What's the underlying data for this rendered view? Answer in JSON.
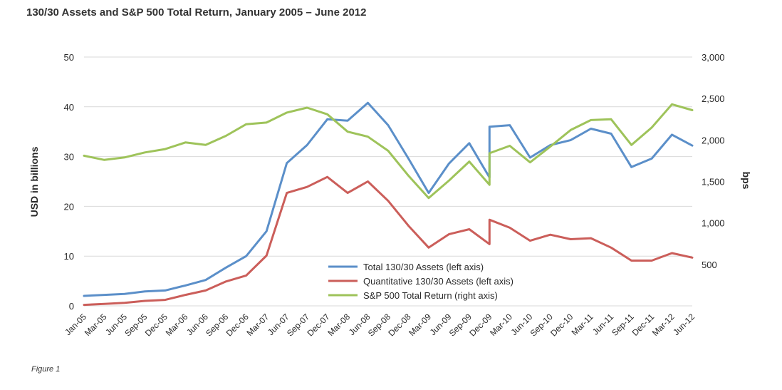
{
  "title": "130/30 Assets and S&P 500 Total Return, January 2005 – June 2012",
  "caption": "Figure 1",
  "colors": {
    "total": "#5b8fc9",
    "quant": "#cb5e5a",
    "sp500": "#9ec35a",
    "grid": "#d9d9d9"
  },
  "chart_data": {
    "type": "line",
    "title": "130/30 Assets and S&P 500 Total Return, January 2005 – June 2012",
    "ylabel": "USD in billions",
    "y2label": "bps",
    "ylim": [
      0,
      50
    ],
    "y2lim": [
      0,
      3000
    ],
    "yticks": [
      "0",
      "10",
      "20",
      "30",
      "40",
      "50"
    ],
    "y2ticks": [
      "500",
      "1,000",
      "1,500",
      "2,000",
      "2,500",
      "3,000"
    ],
    "grid": "horizontal",
    "legend_position": "bottom-center",
    "xticks": [
      "Jan-05",
      "Mar-05",
      "Jun-05",
      "Sep-05",
      "Dec-05",
      "Mar-06",
      "Jun-06",
      "Sep-06",
      "Dec-06",
      "Mar-07",
      "Jun-07",
      "Sep-07",
      "Dec-07",
      "Mar-08",
      "Jun-08",
      "Sep-08",
      "Dec-08",
      "Mar-09",
      "Jun-09",
      "Sep-09",
      "Dec-09",
      "Mar-10",
      "Jun-10",
      "Sep-10",
      "Dec-10",
      "Mar-11",
      "Jun-11",
      "Sep-11",
      "Dec-11",
      "Mar-12",
      "Jun-12"
    ],
    "series": [
      {
        "name": "Total 130/30 Assets (left axis)",
        "axis": "left",
        "points": [
          [
            "Jan-05",
            2.0
          ],
          [
            "Mar-05",
            2.2
          ],
          [
            "Jun-05",
            2.4
          ],
          [
            "Sep-05",
            2.9
          ],
          [
            "Dec-05",
            3.1
          ],
          [
            "Mar-06",
            4.1
          ],
          [
            "Jun-06",
            5.2
          ],
          [
            "Sep-06",
            7.7
          ],
          [
            "Dec-06",
            10.0
          ],
          [
            "Mar-07",
            15.0
          ],
          [
            "Jun-07",
            28.7
          ],
          [
            "Sep-07",
            32.3
          ],
          [
            "Dec-07",
            37.5
          ],
          [
            "Mar-08",
            37.2
          ],
          [
            "Jun-08",
            40.8
          ],
          [
            "Sep-08",
            36.3
          ],
          [
            "Dec-08",
            29.6
          ],
          [
            "Mar-09",
            22.7
          ],
          [
            "Jun-09",
            28.6
          ],
          [
            "Sep-09",
            32.7
          ],
          [
            "Dec-09",
            25.8
          ],
          [
            "Dec-09",
            36.0
          ],
          [
            "Mar-10",
            36.3
          ],
          [
            "Jun-10",
            29.8
          ],
          [
            "Sep-10",
            32.3
          ],
          [
            "Dec-10",
            33.3
          ],
          [
            "Mar-11",
            35.6
          ],
          [
            "Jun-11",
            34.6
          ],
          [
            "Sep-11",
            27.9
          ],
          [
            "Dec-11",
            29.6
          ],
          [
            "Mar-12",
            34.4
          ],
          [
            "Jun-12",
            32.2
          ]
        ]
      },
      {
        "name": "Quantitative 130/30 Assets (left axis)",
        "axis": "left",
        "points": [
          [
            "Jan-05",
            0.2
          ],
          [
            "Mar-05",
            0.4
          ],
          [
            "Jun-05",
            0.6
          ],
          [
            "Sep-05",
            1.0
          ],
          [
            "Dec-05",
            1.2
          ],
          [
            "Mar-06",
            2.2
          ],
          [
            "Jun-06",
            3.1
          ],
          [
            "Sep-06",
            4.9
          ],
          [
            "Dec-06",
            6.1
          ],
          [
            "Mar-07",
            10.1
          ],
          [
            "Jun-07",
            22.7
          ],
          [
            "Sep-07",
            23.9
          ],
          [
            "Dec-07",
            25.9
          ],
          [
            "Mar-08",
            22.7
          ],
          [
            "Jun-08",
            25.0
          ],
          [
            "Sep-08",
            21.1
          ],
          [
            "Dec-08",
            16.1
          ],
          [
            "Mar-09",
            11.7
          ],
          [
            "Jun-09",
            14.4
          ],
          [
            "Sep-09",
            15.4
          ],
          [
            "Dec-09",
            12.4
          ],
          [
            "Dec-09",
            17.3
          ],
          [
            "Mar-10",
            15.7
          ],
          [
            "Jun-10",
            13.1
          ],
          [
            "Sep-10",
            14.3
          ],
          [
            "Dec-10",
            13.4
          ],
          [
            "Mar-11",
            13.6
          ],
          [
            "Jun-11",
            11.7
          ],
          [
            "Sep-11",
            9.1
          ],
          [
            "Dec-11",
            9.1
          ],
          [
            "Mar-12",
            10.6
          ],
          [
            "Jun-12",
            9.7
          ]
        ]
      },
      {
        "name": "S&P 500 Total Return (right axis)",
        "axis": "right",
        "points": [
          [
            "Jan-05",
            1810
          ],
          [
            "Mar-05",
            1760
          ],
          [
            "Jun-05",
            1790
          ],
          [
            "Sep-05",
            1850
          ],
          [
            "Dec-05",
            1890
          ],
          [
            "Mar-06",
            1970
          ],
          [
            "Jun-06",
            1940
          ],
          [
            "Sep-06",
            2050
          ],
          [
            "Dec-06",
            2190
          ],
          [
            "Mar-07",
            2210
          ],
          [
            "Jun-07",
            2330
          ],
          [
            "Sep-07",
            2390
          ],
          [
            "Dec-07",
            2310
          ],
          [
            "Mar-08",
            2100
          ],
          [
            "Jun-08",
            2040
          ],
          [
            "Sep-08",
            1870
          ],
          [
            "Dec-08",
            1570
          ],
          [
            "Mar-09",
            1300
          ],
          [
            "Jun-09",
            1510
          ],
          [
            "Sep-09",
            1740
          ],
          [
            "Dec-09",
            1460
          ],
          [
            "Dec-09",
            1840
          ],
          [
            "Mar-10",
            1930
          ],
          [
            "Jun-10",
            1730
          ],
          [
            "Sep-10",
            1920
          ],
          [
            "Dec-10",
            2120
          ],
          [
            "Mar-11",
            2240
          ],
          [
            "Jun-11",
            2250
          ],
          [
            "Sep-11",
            1940
          ],
          [
            "Dec-11",
            2150
          ],
          [
            "Mar-12",
            2430
          ],
          [
            "Jun-12",
            2360
          ]
        ]
      }
    ]
  }
}
